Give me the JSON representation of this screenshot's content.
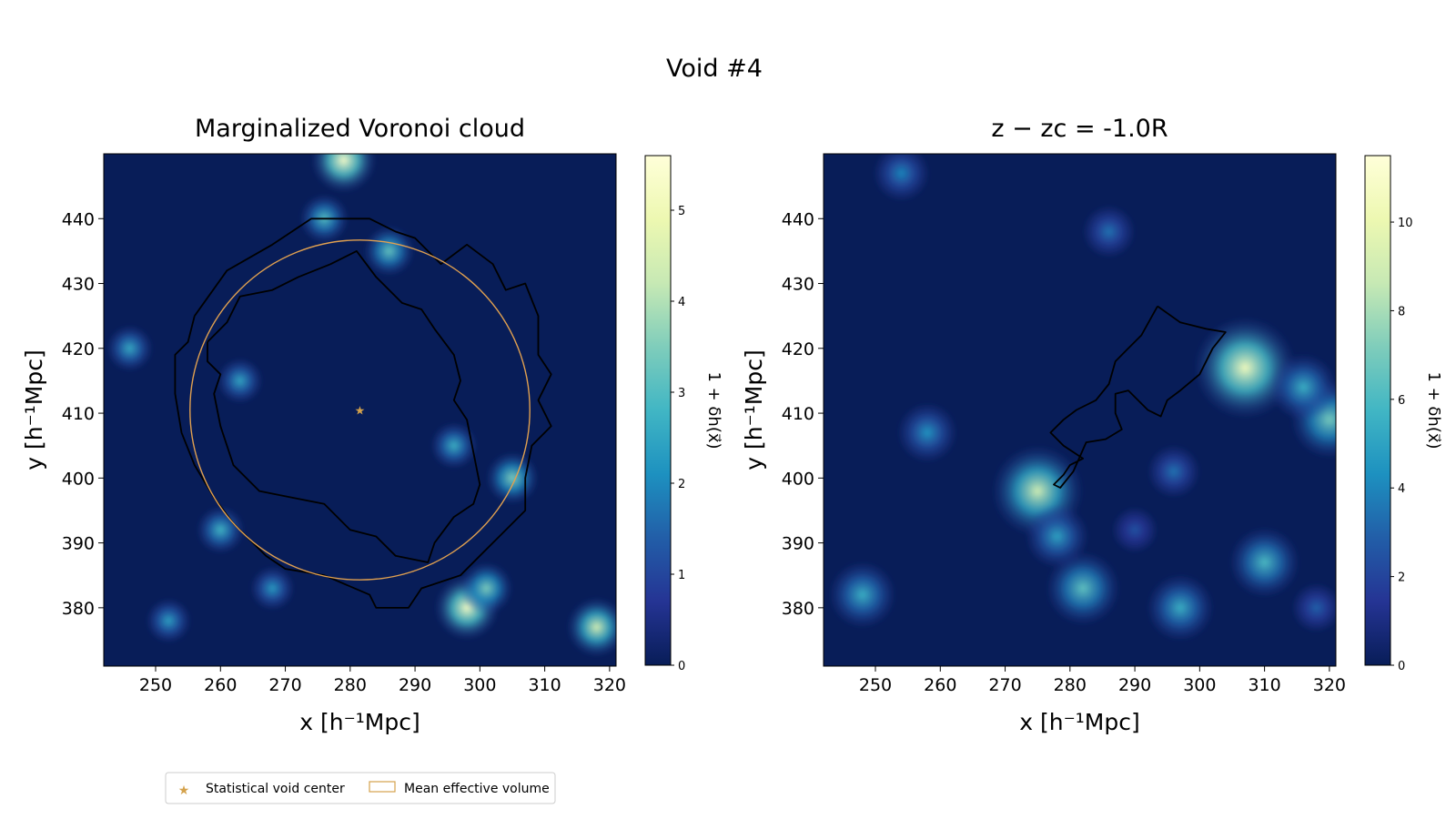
{
  "suptitle": "Void #4",
  "colors": {
    "star": "#d4a24c",
    "circle": "#e0a050",
    "contour": "#000000",
    "cmap": [
      "#081d58",
      "#253494",
      "#225ea8",
      "#1d91c0",
      "#41b6c4",
      "#7fcdbb",
      "#c7e9b4",
      "#edf8b1",
      "#ffffd9"
    ]
  },
  "legend": {
    "items": [
      {
        "label": "Statistical void center",
        "icon": "star-icon"
      },
      {
        "label": "Mean effective volume",
        "icon": "rectangle-patch-icon"
      }
    ]
  },
  "chart_data": [
    {
      "type": "heatmap",
      "title": "Marginalized Voronoi cloud",
      "xlabel": "x [h⁻¹Mpc]",
      "ylabel": "y [h⁻¹Mpc]",
      "xlim": [
        242,
        321
      ],
      "ylim": [
        371,
        450
      ],
      "xticks": [
        250,
        260,
        270,
        280,
        290,
        300,
        310,
        320
      ],
      "yticks": [
        380,
        390,
        400,
        410,
        420,
        430,
        440
      ],
      "colorbar": {
        "label": "1 + δh(x⃗)",
        "vmin": 0,
        "vmax": 5.6,
        "ticks": [
          0,
          1,
          2,
          3,
          4,
          5
        ]
      },
      "density_peaks": [
        {
          "x": 298,
          "y": 380,
          "value": 5.2
        },
        {
          "x": 279,
          "y": 449,
          "value": 5.3
        },
        {
          "x": 318,
          "y": 377,
          "value": 4.5
        },
        {
          "x": 301,
          "y": 383,
          "value": 3.5
        },
        {
          "x": 305,
          "y": 400,
          "value": 3.5
        },
        {
          "x": 286,
          "y": 435,
          "value": 3.2
        },
        {
          "x": 260,
          "y": 392,
          "value": 2.8
        },
        {
          "x": 296,
          "y": 405,
          "value": 2.7
        },
        {
          "x": 252,
          "y": 378,
          "value": 2.4
        },
        {
          "x": 246,
          "y": 420,
          "value": 2.6
        },
        {
          "x": 263,
          "y": 415,
          "value": 2.5
        },
        {
          "x": 276,
          "y": 440,
          "value": 3.0
        },
        {
          "x": 268,
          "y": 383,
          "value": 2.3
        }
      ],
      "void_center": {
        "x": 281.5,
        "y": 410.5
      },
      "mean_effective_circle": {
        "cx": 281.5,
        "cy": 410.5,
        "r": 26.2
      },
      "contours": [
        [
          [
            256,
            425
          ],
          [
            261,
            432
          ],
          [
            268,
            436
          ],
          [
            274,
            440
          ],
          [
            283,
            440
          ],
          [
            287,
            438
          ],
          [
            290,
            437
          ],
          [
            294,
            433
          ],
          [
            298,
            436
          ],
          [
            302,
            433
          ],
          [
            304,
            429
          ],
          [
            307,
            430
          ],
          [
            309,
            425
          ],
          [
            309,
            419
          ],
          [
            311,
            416
          ],
          [
            309,
            412
          ],
          [
            311,
            408
          ],
          [
            308,
            405
          ],
          [
            307,
            400
          ],
          [
            307,
            395
          ],
          [
            303,
            391
          ],
          [
            300,
            388
          ],
          [
            297,
            385
          ],
          [
            291,
            383
          ],
          [
            289,
            380
          ],
          [
            284,
            380
          ],
          [
            283,
            382
          ],
          [
            276,
            385
          ],
          [
            270,
            386
          ],
          [
            267,
            388
          ],
          [
            262,
            393
          ],
          [
            259,
            397
          ],
          [
            256,
            402
          ],
          [
            254,
            407
          ],
          [
            253,
            413
          ],
          [
            253,
            419
          ],
          [
            255,
            421
          ],
          [
            256,
            425
          ]
        ],
        [
          [
            258,
            421
          ],
          [
            261,
            424
          ],
          [
            263,
            428
          ],
          [
            268,
            429
          ],
          [
            272,
            431
          ],
          [
            277,
            433
          ],
          [
            281,
            435
          ],
          [
            284,
            431
          ],
          [
            288,
            427
          ],
          [
            291,
            426
          ],
          [
            293,
            423
          ],
          [
            296,
            419
          ],
          [
            297,
            415
          ],
          [
            296,
            412
          ],
          [
            298,
            409
          ],
          [
            299,
            404
          ],
          [
            300,
            399
          ],
          [
            299,
            396
          ],
          [
            296,
            394
          ],
          [
            293,
            390
          ],
          [
            292,
            387
          ],
          [
            287,
            388
          ],
          [
            284,
            391
          ],
          [
            280,
            392
          ],
          [
            276,
            396
          ],
          [
            271,
            397
          ],
          [
            266,
            398
          ],
          [
            262,
            402
          ],
          [
            260,
            408
          ],
          [
            259,
            413
          ],
          [
            260,
            416
          ],
          [
            258,
            418
          ],
          [
            258,
            421
          ]
        ]
      ]
    },
    {
      "type": "heatmap",
      "title": "z − zc = -1.0R",
      "xlabel": "x [h⁻¹Mpc]",
      "ylabel": "y [h⁻¹Mpc]",
      "xlim": [
        242,
        321
      ],
      "ylim": [
        371,
        450
      ],
      "xticks": [
        250,
        260,
        270,
        280,
        290,
        300,
        310,
        320
      ],
      "yticks": [
        380,
        390,
        400,
        410,
        420,
        430,
        440
      ],
      "colorbar": {
        "label": "1 + δh(x⃗)",
        "vmin": 0,
        "vmax": 11.5,
        "ticks": [
          0,
          2,
          4,
          6,
          8,
          10
        ]
      },
      "density_peaks": [
        {
          "x": 307,
          "y": 417,
          "value": 10.5
        },
        {
          "x": 275,
          "y": 398,
          "value": 9.0
        },
        {
          "x": 320,
          "y": 409,
          "value": 7.0
        },
        {
          "x": 282,
          "y": 383,
          "value": 6.5
        },
        {
          "x": 310,
          "y": 387,
          "value": 6.0
        },
        {
          "x": 248,
          "y": 382,
          "value": 5.5
        },
        {
          "x": 297,
          "y": 380,
          "value": 5.5
        },
        {
          "x": 258,
          "y": 407,
          "value": 4.5
        },
        {
          "x": 254,
          "y": 447,
          "value": 4.0
        },
        {
          "x": 316,
          "y": 414,
          "value": 5.5
        },
        {
          "x": 278,
          "y": 391,
          "value": 5.0
        },
        {
          "x": 286,
          "y": 438,
          "value": 3.5
        },
        {
          "x": 296,
          "y": 401,
          "value": 3.5
        },
        {
          "x": 318,
          "y": 380,
          "value": 3.0
        },
        {
          "x": 290,
          "y": 392,
          "value": 2.5
        }
      ],
      "contours": [
        [
          [
            293.5,
            426.5
          ],
          [
            297,
            424
          ],
          [
            301,
            423
          ],
          [
            304,
            422.5
          ],
          [
            302,
            420
          ],
          [
            300,
            416
          ],
          [
            297,
            413.5
          ],
          [
            295,
            412
          ],
          [
            294,
            409.5
          ],
          [
            292,
            410.5
          ],
          [
            289,
            413.5
          ],
          [
            287,
            413
          ],
          [
            287,
            410
          ],
          [
            288,
            407.5
          ],
          [
            285.5,
            406
          ],
          [
            282.5,
            405.5
          ],
          [
            280.5,
            401
          ],
          [
            278.5,
            398.5
          ],
          [
            277.5,
            399
          ],
          [
            279,
            400.5
          ],
          [
            280,
            402
          ],
          [
            282,
            403
          ],
          [
            279,
            405
          ],
          [
            277,
            407
          ],
          [
            279,
            409
          ],
          [
            281,
            410.5
          ],
          [
            284,
            412
          ],
          [
            286,
            414.5
          ],
          [
            287,
            418
          ],
          [
            289,
            420
          ],
          [
            291,
            422
          ],
          [
            293.5,
            426.5
          ]
        ]
      ]
    }
  ]
}
